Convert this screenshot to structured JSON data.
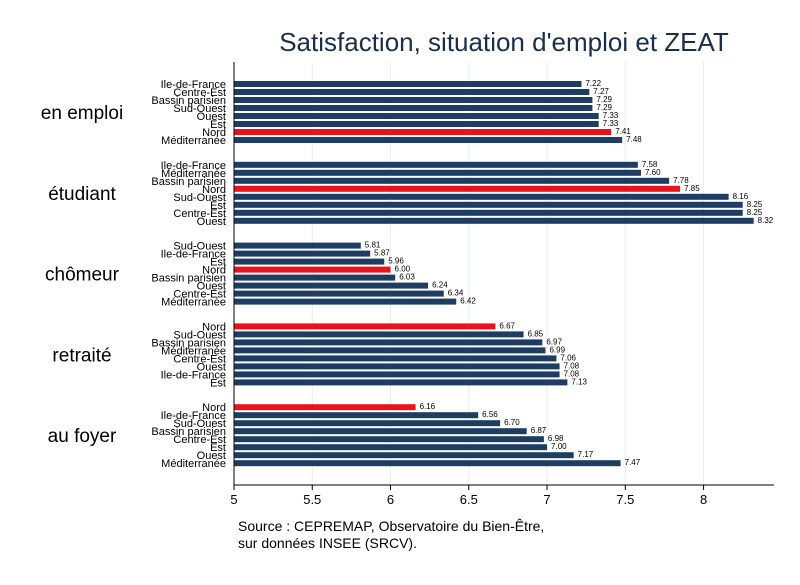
{
  "chart_data": {
    "type": "bar",
    "orientation": "horizontal",
    "title": "Satisfaction, situation d'emploi et ZEAT",
    "xlim": [
      5,
      8.45
    ],
    "x_ticks": [
      "5",
      "5.5",
      "6",
      "6.5",
      "7",
      "7.5",
      "8"
    ],
    "x_tick_values": [
      5,
      5.5,
      6,
      6.5,
      7,
      7.5,
      8
    ],
    "grid": true,
    "colors": {
      "default": "#1f3d63",
      "highlight": "#e8131b",
      "grid": "#e4edf2",
      "title": "#1a2e4a"
    },
    "highlight_category": "Nord",
    "groups": [
      {
        "name": "en emploi",
        "categories": [
          "Ile-de-France",
          "Centre-Est",
          "Bassin parisien",
          "Sud-Ouest",
          "Ouest",
          "Est",
          "Nord",
          "Méditerranée"
        ],
        "values": [
          7.22,
          7.27,
          7.29,
          7.29,
          7.33,
          7.33,
          7.41,
          7.48
        ],
        "labels": [
          "7.22",
          "7.27",
          "7.29",
          "7.29",
          "7.33",
          "7.33",
          "7.41",
          "7.48"
        ]
      },
      {
        "name": "étudiant",
        "categories": [
          "Ile-de-France",
          "Méditerranée",
          "Bassin parisien",
          "Nord",
          "Sud-Ouest",
          "Est",
          "Centre-Est",
          "Ouest"
        ],
        "values": [
          7.58,
          7.6,
          7.78,
          7.85,
          8.16,
          8.25,
          8.25,
          8.32
        ],
        "labels": [
          "7.58",
          "7.60",
          "7.78",
          "7.85",
          "8.16",
          "8.25",
          "8.25",
          "8.32"
        ]
      },
      {
        "name": "chômeur",
        "categories": [
          "Sud-Ouest",
          "Ile-de-France",
          "Est",
          "Nord",
          "Bassin parisien",
          "Ouest",
          "Centre-Est",
          "Méditerranée"
        ],
        "values": [
          5.81,
          5.87,
          5.96,
          6.0,
          6.03,
          6.24,
          6.34,
          6.42
        ],
        "labels": [
          "5.81",
          "5.87",
          "5.96",
          "6.00",
          "6.03",
          "6.24",
          "6.34",
          "6.42"
        ]
      },
      {
        "name": "retraité",
        "categories": [
          "Nord",
          "Sud-Ouest",
          "Bassin parisien",
          "Méditerranée",
          "Centre-Est",
          "Ouest",
          "Ile-de-France",
          "Est"
        ],
        "values": [
          6.67,
          6.85,
          6.97,
          6.99,
          7.06,
          7.08,
          7.08,
          7.13
        ],
        "labels": [
          "6.67",
          "6.85",
          "6.97",
          "6.99",
          "7.06",
          "7.08",
          "7.08",
          "7.13"
        ]
      },
      {
        "name": "au foyer",
        "categories": [
          "Nord",
          "Ile-de-France",
          "Sud-Ouest",
          "Bassin parisien",
          "Centre-Est",
          "Est",
          "Ouest",
          "Méditerranée"
        ],
        "values": [
          6.16,
          6.56,
          6.7,
          6.87,
          6.98,
          7.0,
          7.17,
          7.47
        ],
        "labels": [
          "6.16",
          "6.56",
          "6.70",
          "6.87",
          "6.98",
          "7.00",
          "7.17",
          "7.47"
        ]
      }
    ]
  },
  "source": {
    "line1": "Source : CEPREMAP, Observatoire du Bien-Être,",
    "line2": "sur données INSEE (SRCV)."
  }
}
